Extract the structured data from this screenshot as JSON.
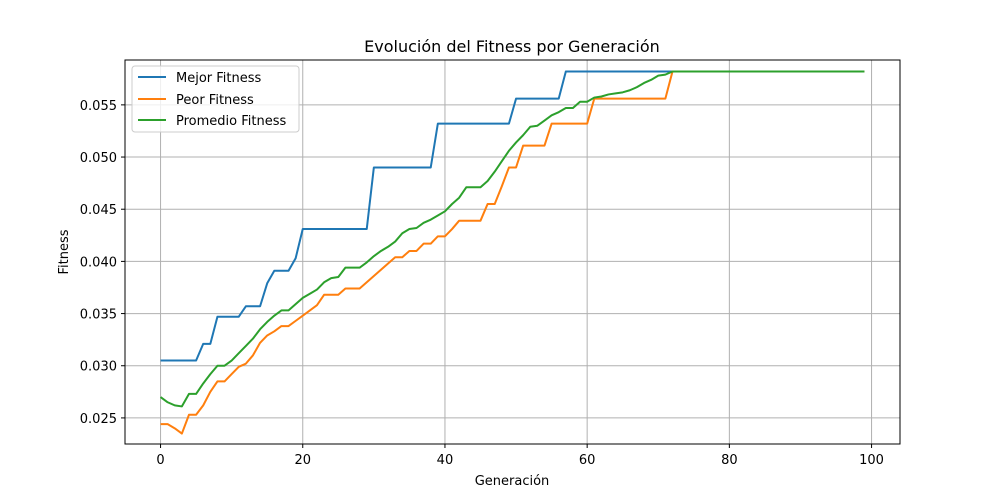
{
  "chart_data": {
    "type": "line",
    "title": "Evolución del Fitness por Generación",
    "xlabel": "Generación",
    "ylabel": "Fitness",
    "xlim": [
      -5,
      104
    ],
    "ylim": [
      0.0225,
      0.0593
    ],
    "xticks": [
      0,
      20,
      40,
      60,
      80,
      100
    ],
    "yticks": [
      0.025,
      0.03,
      0.035,
      0.04,
      0.045,
      0.05,
      0.055
    ],
    "grid": true,
    "legend_position": "top-left",
    "series": [
      {
        "name": "Mejor Fitness",
        "color": "#1f77b4",
        "points": [
          [
            0,
            0.0305
          ],
          [
            5,
            0.0305
          ],
          [
            6,
            0.0321
          ],
          [
            7,
            0.0321
          ],
          [
            8,
            0.0347
          ],
          [
            11,
            0.0347
          ],
          [
            12,
            0.0357
          ],
          [
            14,
            0.0357
          ],
          [
            15,
            0.0379
          ],
          [
            16,
            0.0391
          ],
          [
            18,
            0.0391
          ],
          [
            19,
            0.0403
          ],
          [
            20,
            0.0431
          ],
          [
            29,
            0.0431
          ],
          [
            30,
            0.049
          ],
          [
            38,
            0.049
          ],
          [
            39,
            0.0532
          ],
          [
            49,
            0.0532
          ],
          [
            50,
            0.0556
          ],
          [
            56,
            0.0556
          ],
          [
            57,
            0.0582
          ],
          [
            99,
            0.0582
          ]
        ]
      },
      {
        "name": "Peor Fitness",
        "color": "#ff7f0e",
        "points": [
          [
            0,
            0.0244
          ],
          [
            1,
            0.0244
          ],
          [
            2,
            0.024
          ],
          [
            3,
            0.0235
          ],
          [
            4,
            0.0253
          ],
          [
            5,
            0.0253
          ],
          [
            6,
            0.0262
          ],
          [
            7,
            0.0275
          ],
          [
            8,
            0.0285
          ],
          [
            9,
            0.0285
          ],
          [
            10,
            0.0292
          ],
          [
            11,
            0.0299
          ],
          [
            12,
            0.0302
          ],
          [
            13,
            0.031
          ],
          [
            14,
            0.0322
          ],
          [
            15,
            0.0329
          ],
          [
            16,
            0.0333
          ],
          [
            17,
            0.0338
          ],
          [
            18,
            0.0338
          ],
          [
            19,
            0.0343
          ],
          [
            20,
            0.0348
          ],
          [
            21,
            0.0353
          ],
          [
            22,
            0.0358
          ],
          [
            23,
            0.0368
          ],
          [
            25,
            0.0368
          ],
          [
            26,
            0.0374
          ],
          [
            28,
            0.0374
          ],
          [
            29,
            0.038
          ],
          [
            30,
            0.0386
          ],
          [
            31,
            0.0392
          ],
          [
            32,
            0.0398
          ],
          [
            33,
            0.0404
          ],
          [
            34,
            0.0404
          ],
          [
            35,
            0.041
          ],
          [
            36,
            0.041
          ],
          [
            37,
            0.0417
          ],
          [
            38,
            0.0417
          ],
          [
            39,
            0.0424
          ],
          [
            40,
            0.0424
          ],
          [
            41,
            0.0431
          ],
          [
            42,
            0.0439
          ],
          [
            45,
            0.0439
          ],
          [
            46,
            0.0455
          ],
          [
            47,
            0.0455
          ],
          [
            48,
            0.0472
          ],
          [
            49,
            0.049
          ],
          [
            50,
            0.049
          ],
          [
            51,
            0.0511
          ],
          [
            54,
            0.0511
          ],
          [
            55,
            0.0532
          ],
          [
            60,
            0.0532
          ],
          [
            61,
            0.0556
          ],
          [
            71,
            0.0556
          ],
          [
            72,
            0.0582
          ],
          [
            99,
            0.0582
          ]
        ]
      },
      {
        "name": "Promedio Fitness",
        "color": "#2ca02c",
        "points": [
          [
            0,
            0.027
          ],
          [
            1,
            0.0265
          ],
          [
            2,
            0.0262
          ],
          [
            3,
            0.0261
          ],
          [
            4,
            0.0273
          ],
          [
            5,
            0.0273
          ],
          [
            6,
            0.0283
          ],
          [
            7,
            0.0292
          ],
          [
            8,
            0.03
          ],
          [
            9,
            0.03
          ],
          [
            10,
            0.0305
          ],
          [
            11,
            0.0312
          ],
          [
            12,
            0.0319
          ],
          [
            13,
            0.0326
          ],
          [
            14,
            0.0335
          ],
          [
            15,
            0.0342
          ],
          [
            16,
            0.0348
          ],
          [
            17,
            0.0353
          ],
          [
            18,
            0.0353
          ],
          [
            19,
            0.0359
          ],
          [
            20,
            0.0365
          ],
          [
            21,
            0.0369
          ],
          [
            22,
            0.0373
          ],
          [
            23,
            0.038
          ],
          [
            24,
            0.0384
          ],
          [
            25,
            0.0385
          ],
          [
            26,
            0.0394
          ],
          [
            28,
            0.0394
          ],
          [
            29,
            0.0399
          ],
          [
            30,
            0.0405
          ],
          [
            31,
            0.041
          ],
          [
            32,
            0.0414
          ],
          [
            33,
            0.0419
          ],
          [
            34,
            0.0427
          ],
          [
            35,
            0.0431
          ],
          [
            36,
            0.0432
          ],
          [
            37,
            0.0437
          ],
          [
            38,
            0.044
          ],
          [
            39,
            0.0444
          ],
          [
            40,
            0.0448
          ],
          [
            41,
            0.0455
          ],
          [
            42,
            0.0461
          ],
          [
            43,
            0.0471
          ],
          [
            45,
            0.0471
          ],
          [
            46,
            0.0477
          ],
          [
            47,
            0.0486
          ],
          [
            48,
            0.0496
          ],
          [
            49,
            0.0506
          ],
          [
            50,
            0.0514
          ],
          [
            51,
            0.0521
          ],
          [
            52,
            0.0529
          ],
          [
            53,
            0.053
          ],
          [
            54,
            0.0535
          ],
          [
            55,
            0.054
          ],
          [
            56,
            0.0543
          ],
          [
            57,
            0.0547
          ],
          [
            58,
            0.0547
          ],
          [
            59,
            0.0553
          ],
          [
            60,
            0.0553
          ],
          [
            61,
            0.0557
          ],
          [
            62,
            0.0558
          ],
          [
            63,
            0.056
          ],
          [
            64,
            0.0561
          ],
          [
            65,
            0.0562
          ],
          [
            66,
            0.0564
          ],
          [
            67,
            0.0567
          ],
          [
            68,
            0.0571
          ],
          [
            69,
            0.0574
          ],
          [
            70,
            0.0578
          ],
          [
            71,
            0.0579
          ],
          [
            72,
            0.0582
          ],
          [
            99,
            0.0582
          ]
        ]
      }
    ]
  }
}
